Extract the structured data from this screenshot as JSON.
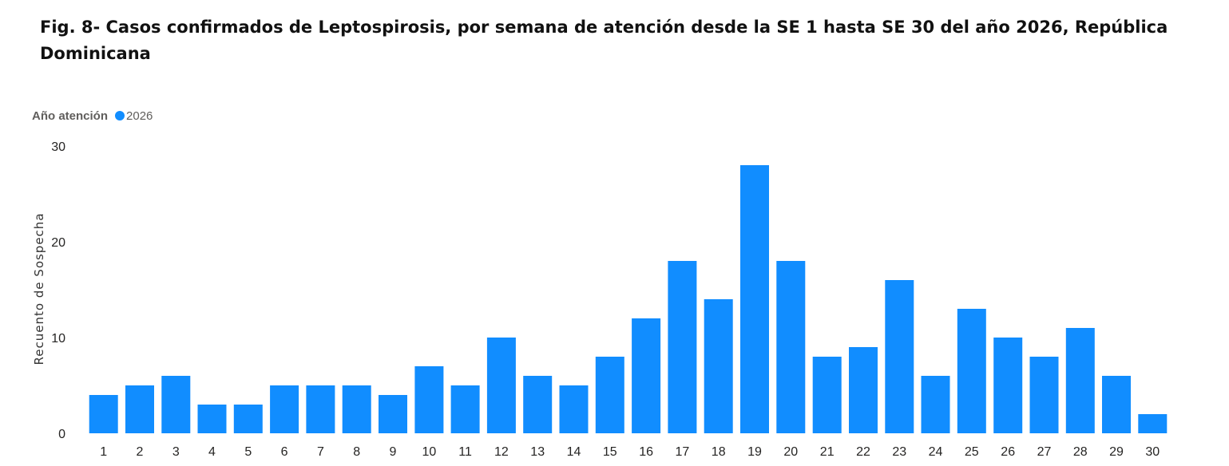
{
  "figure": {
    "title": "Fig. 8- Casos confirmados de Leptospirosis, por semana de atención desde la SE 1 hasta SE 30 del año 2026, República Dominicana"
  },
  "legend": {
    "title": "Año atención",
    "items": [
      {
        "label": "2026",
        "color": "#118DFF"
      }
    ]
  },
  "chart_data": {
    "type": "bar",
    "title": "Fig. 8- Casos confirmados de Leptospirosis, por semana de atención desde la SE 1 hasta SE 30 del año 2026, República Dominicana",
    "xlabel": "",
    "ylabel": "Recuento de Sospecha",
    "categories": [
      "1",
      "2",
      "3",
      "4",
      "5",
      "6",
      "7",
      "8",
      "9",
      "10",
      "11",
      "12",
      "13",
      "14",
      "15",
      "16",
      "17",
      "18",
      "19",
      "20",
      "21",
      "22",
      "23",
      "24",
      "25",
      "26",
      "27",
      "28",
      "29",
      "30"
    ],
    "series": [
      {
        "name": "2026",
        "color": "#118DFF",
        "values": [
          4,
          5,
          6,
          3,
          3,
          5,
          5,
          5,
          4,
          7,
          5,
          10,
          6,
          5,
          8,
          12,
          18,
          14,
          28,
          18,
          8,
          9,
          16,
          6,
          13,
          10,
          8,
          11,
          6,
          2
        ]
      }
    ],
    "ylim": [
      0,
      30
    ],
    "yticks": [
      0,
      10,
      20,
      30
    ],
    "grid": false,
    "legend_position": "top-left"
  }
}
